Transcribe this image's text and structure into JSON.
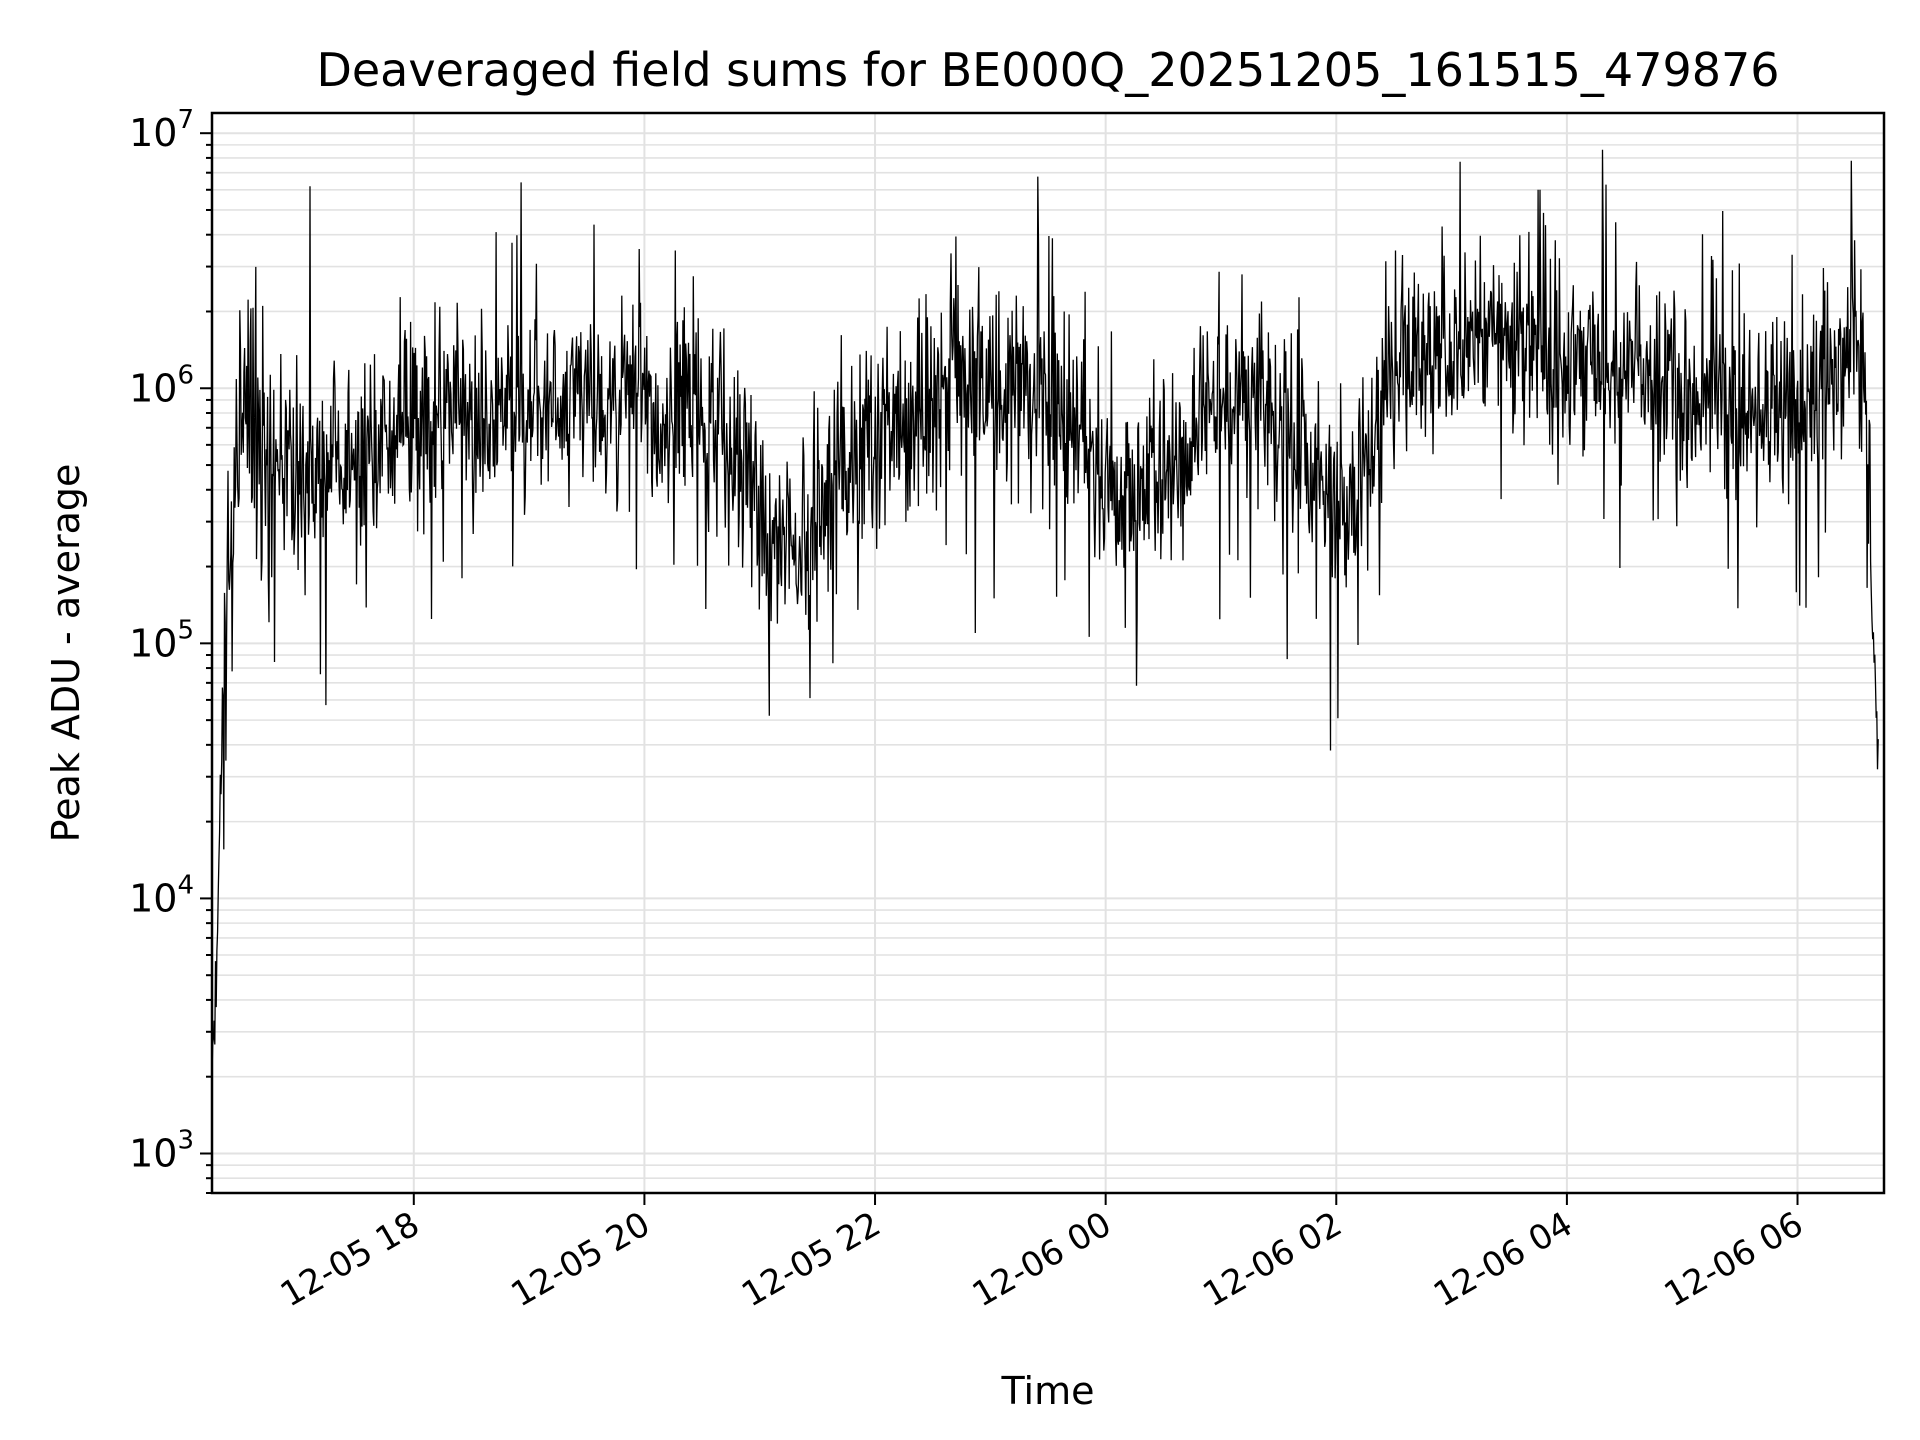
{
  "chart_data": {
    "type": "line",
    "title": "Deaveraged field sums for BE000Q_20251205_161515_479876",
    "xlabel": "Time",
    "ylabel": "Peak ADU - average",
    "yscale": "log",
    "ylim": [
      700,
      12000000
    ],
    "xlim": [
      "2025-12-05 16:15",
      "2025-12-06 06:45"
    ],
    "grid": true,
    "line_color": "#000000",
    "x_ticks": [
      "12-05 18",
      "12-05 20",
      "12-05 22",
      "12-06 00",
      "12-06 02",
      "12-06 04",
      "12-06 06"
    ],
    "y_ticks": [
      {
        "base": "10",
        "exp": "3",
        "value": 1000
      },
      {
        "base": "10",
        "exp": "4",
        "value": 10000
      },
      {
        "base": "10",
        "exp": "5",
        "value": 100000
      },
      {
        "base": "10",
        "exp": "6",
        "value": 1000000
      },
      {
        "base": "10",
        "exp": "7",
        "value": 10000000
      }
    ],
    "series": [
      {
        "x": [
          "2025-12-05 16:15",
          "2025-12-05 16:18",
          "2025-12-05 16:21",
          "2025-12-05 16:30",
          "2025-12-05 16:45",
          "2025-12-05 17:00",
          "2025-12-05 17:15",
          "2025-12-05 17:30",
          "2025-12-05 17:45",
          "2025-12-05 18:00",
          "2025-12-05 18:30",
          "2025-12-05 19:00",
          "2025-12-05 19:30",
          "2025-12-05 20:00",
          "2025-12-05 20:30",
          "2025-12-05 20:50",
          "2025-12-05 21:05",
          "2025-12-05 21:20",
          "2025-12-05 21:40",
          "2025-12-05 22:00",
          "2025-12-05 22:30",
          "2025-12-05 23:00",
          "2025-12-05 23:30",
          "2025-12-05 23:50",
          "2025-12-06 00:10",
          "2025-12-06 00:30",
          "2025-12-06 01:00",
          "2025-12-06 01:30",
          "2025-12-06 01:50",
          "2025-12-06 02:00",
          "2025-12-06 02:10",
          "2025-12-06 02:30",
          "2025-12-06 03:00",
          "2025-12-06 03:30",
          "2025-12-06 04:00",
          "2025-12-06 04:30",
          "2025-12-06 05:00",
          "2025-12-06 05:30",
          "2025-12-06 06:00",
          "2025-12-06 06:20",
          "2025-12-06 06:35",
          "2025-12-06 06:42"
        ],
        "y": [
          1800,
          8000,
          100000,
          1000000,
          500000,
          450000,
          480000,
          520000,
          600000,
          700000,
          750000,
          800000,
          950000,
          900000,
          750000,
          650000,
          250000,
          220000,
          500000,
          650000,
          900000,
          1100000,
          900000,
          650000,
          320000,
          450000,
          900000,
          850000,
          500000,
          320000,
          400000,
          1300000,
          1500000,
          1650000,
          1300000,
          1150000,
          950000,
          850000,
          850000,
          1050000,
          1300000,
          30000
        ]
      }
    ],
    "notable_points": [
      {
        "x": "2025-12-05 17:06",
        "y": 6200000
      },
      {
        "x": "2025-12-05 21:05",
        "y": 52000
      },
      {
        "x": "2025-12-06 01:57",
        "y": 38000
      },
      {
        "x": "2025-12-06 03:45",
        "y": 6000000
      },
      {
        "x": "2025-12-06 06:28",
        "y": 7800000
      }
    ]
  }
}
